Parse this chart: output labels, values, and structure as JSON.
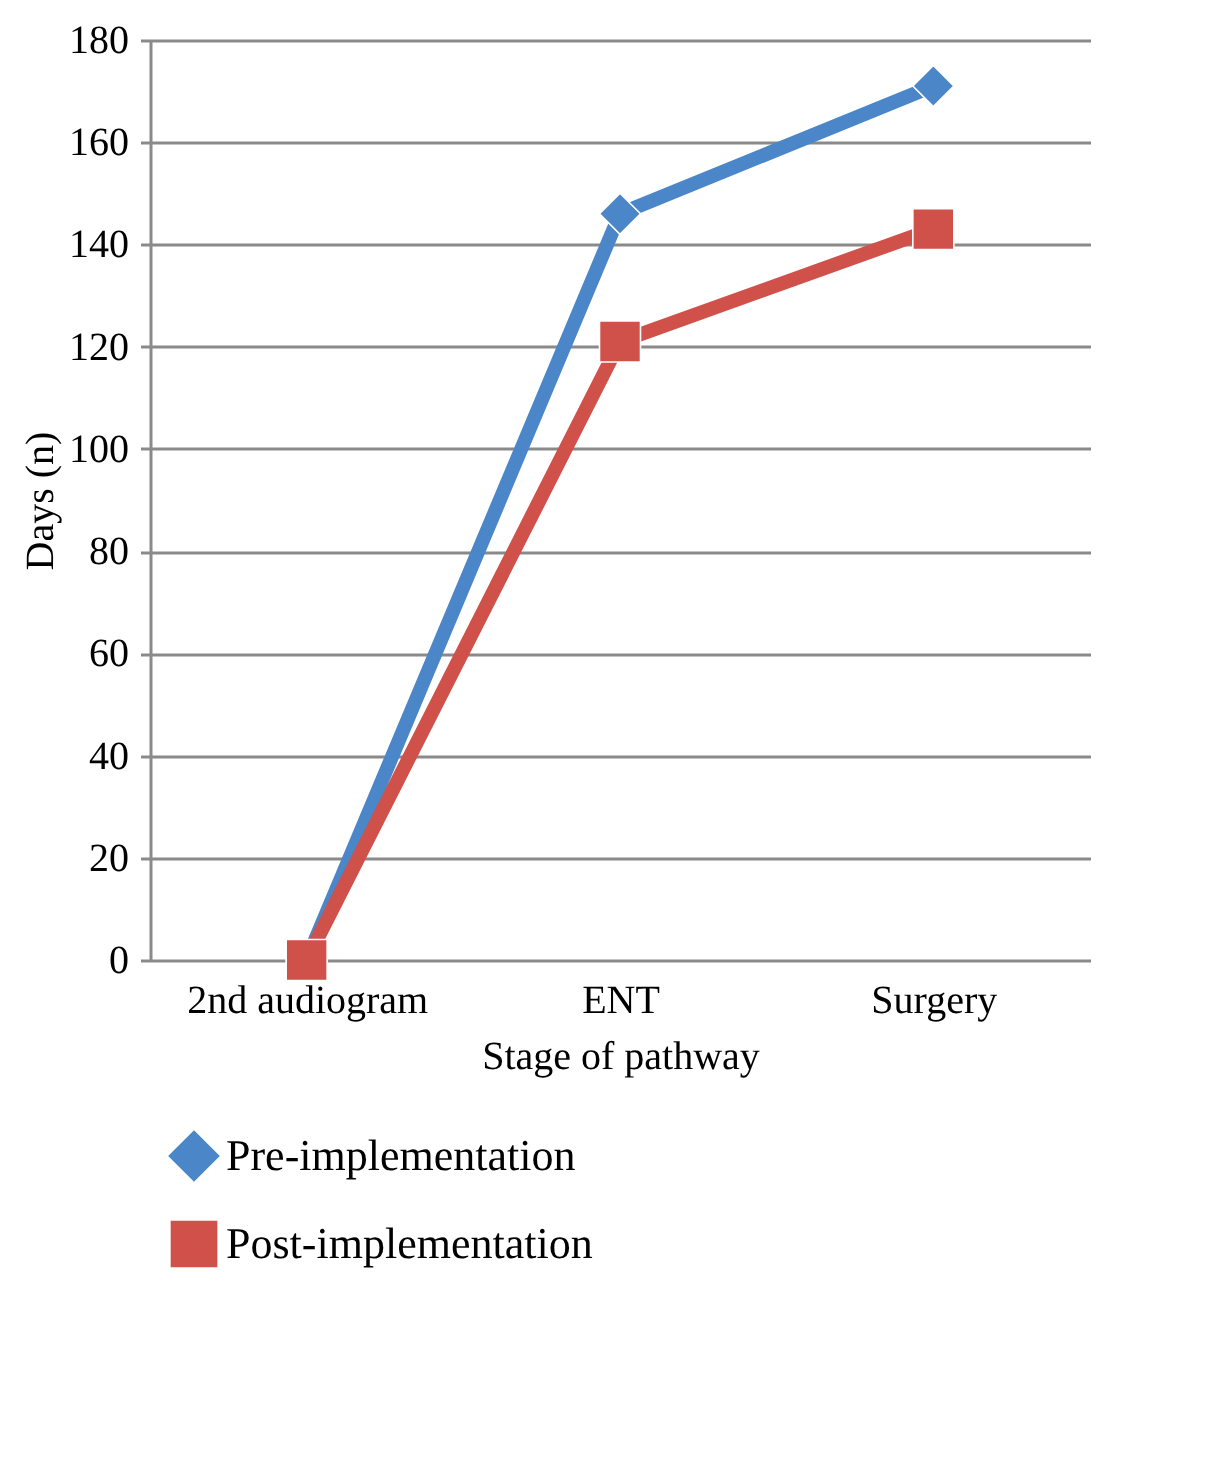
{
  "chart_data": {
    "type": "line",
    "xlabel": "Stage of pathway",
    "ylabel": "Days (n)",
    "categories": [
      "2nd audiogram",
      "ENT",
      "Surgery"
    ],
    "series": [
      {
        "name": "Pre-implementation",
        "color": "#4a86c8",
        "marker": "diamond",
        "values": [
          0,
          146,
          171
        ]
      },
      {
        "name": "Post-implementation",
        "color": "#d0504a",
        "marker": "square",
        "values": [
          0,
          121,
          143
        ]
      }
    ],
    "ylim": [
      0,
      180
    ],
    "yticks": [
      0,
      20,
      40,
      60,
      80,
      100,
      120,
      140,
      160,
      180
    ],
    "grid": "y",
    "legend": "bottom"
  }
}
